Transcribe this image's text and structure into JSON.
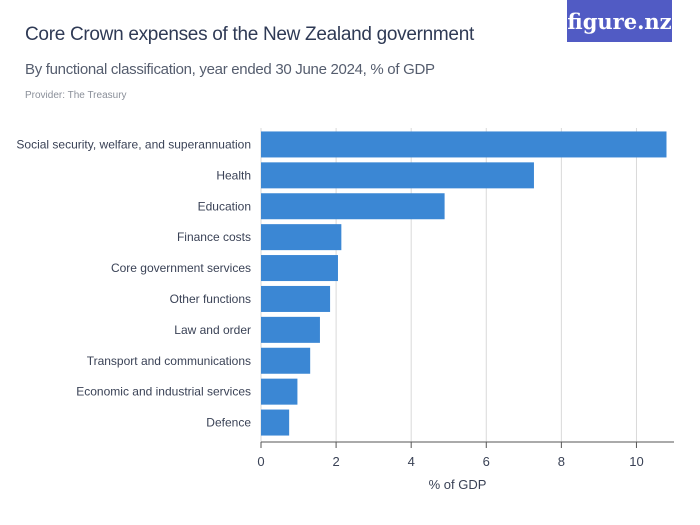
{
  "header": {
    "title": "Core Crown expenses of the New Zealand government",
    "subtitle": "By functional classification, year ended 30 June 2024, % of GDP",
    "provider": "Provider: The Treasury",
    "logo": "figure.nz"
  },
  "chart_data": {
    "type": "bar",
    "orientation": "horizontal",
    "categories": [
      "Social security, welfare, and superannuation",
      "Health",
      "Education",
      "Finance costs",
      "Core government services",
      "Other functions",
      "Law and order",
      "Transport and communications",
      "Economic and industrial services",
      "Defence"
    ],
    "values": [
      10.8,
      7.27,
      4.89,
      2.14,
      2.05,
      1.84,
      1.57,
      1.31,
      0.97,
      0.75
    ],
    "xlabel": "% of GDP",
    "xlim": [
      0,
      11
    ],
    "xticks": [
      0,
      2,
      4,
      6,
      8,
      10
    ],
    "grid": true,
    "color": "#3b87d4"
  }
}
